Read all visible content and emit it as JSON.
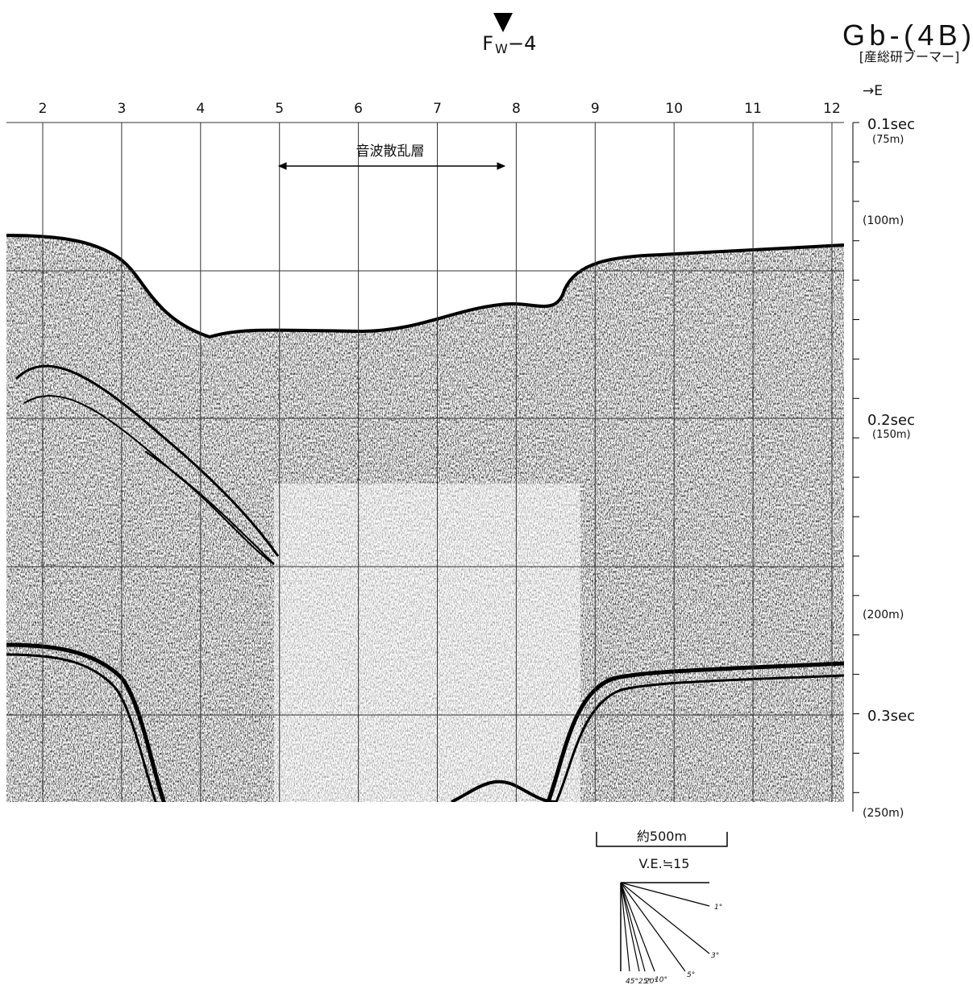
{
  "header": {
    "profile_id": "Gb-(4B)",
    "source": "[産総研ブーマー]",
    "site_letter": "F",
    "site_subscript": "W",
    "site_number": "−4",
    "direction": "→E"
  },
  "fix_marks": [
    "2",
    "3",
    "4",
    "5",
    "6",
    "7",
    "8",
    "9",
    "10",
    "11",
    "12"
  ],
  "depth_scale": {
    "t1": "0.1sec",
    "d1": "(75m)",
    "d2": "(100m)",
    "t2": "0.2sec",
    "d3": "(150m)",
    "d4": "(200m)",
    "t3": "0.3sec",
    "d5": "(250m)"
  },
  "annotation": "音波散乱層",
  "scale_bar": {
    "length": "約500m",
    "vertical_exaggeration": "V.E.≒15"
  },
  "angle_fan": [
    "1°",
    "3°",
    "5°",
    "10°",
    "20°",
    "25°",
    "45°"
  ]
}
